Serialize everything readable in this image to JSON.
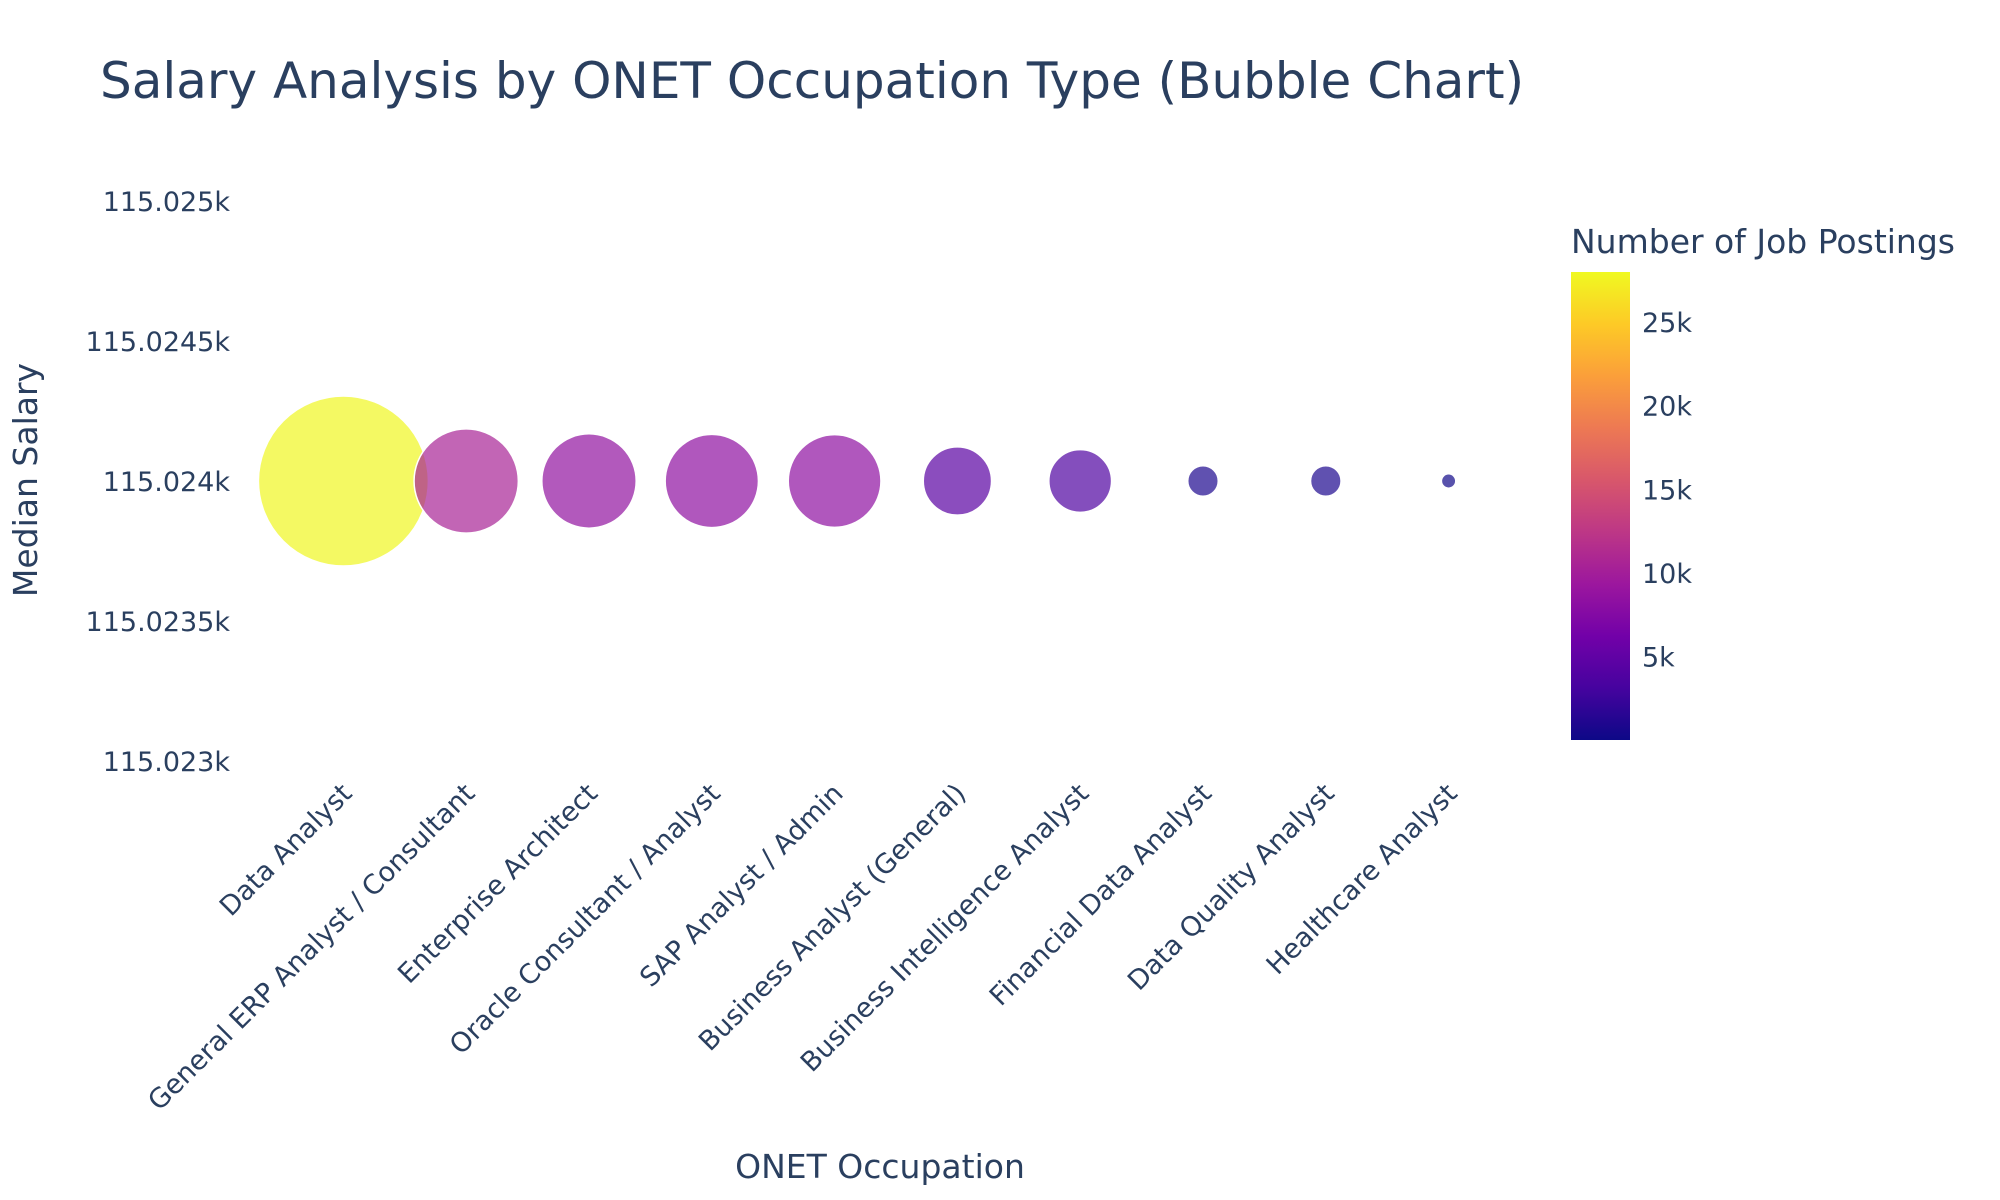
{
  "chart_data": {
    "type": "scatter",
    "title": "Salary Analysis by ONET Occupation Type (Bubble Chart)",
    "xlabel": "ONET Occupation",
    "ylabel": "Median Salary",
    "categories": [
      "Data Analyst",
      "General ERP Analyst / Consultant",
      "Enterprise Architect",
      "Oracle Consultant / Analyst",
      "SAP Analyst / Admin",
      "Business Analyst (General)",
      "Business Intelligence Analyst",
      "Financial Data Analyst",
      "Data Quality Analyst",
      "Healthcare Analyst"
    ],
    "series": [
      {
        "values": [
          115024,
          115024,
          115024,
          115024,
          115024,
          115024,
          115024,
          115024,
          115024,
          115024
        ],
        "job_postings": [
          27900,
          10500,
          8600,
          8400,
          8300,
          4500,
          3800,
          900,
          900,
          200
        ]
      }
    ],
    "ylim": [
      115023,
      115025
    ],
    "y_ticks": [
      "115.023k",
      "115.0235k",
      "115.024k",
      "115.0245k",
      "115.025k"
    ],
    "y_tick_values": [
      115023,
      115023.5,
      115024,
      115024.5,
      115025
    ],
    "colorbar": {
      "title": "Number of Job Postings",
      "range": [
        0,
        28000
      ],
      "ticks": [
        "5k",
        "10k",
        "15k",
        "20k",
        "25k"
      ],
      "tick_values": [
        5000,
        10000,
        15000,
        20000,
        25000
      ],
      "colorscale": [
        "#0d0887",
        "#46039f",
        "#7201a8",
        "#9c179e",
        "#bd3786",
        "#d8576b",
        "#ed7953",
        "#fb9f3a",
        "#fdca26",
        "#f0f921"
      ]
    },
    "marker_opacity": 0.7,
    "grid": false,
    "legend": "colorbar-right"
  }
}
